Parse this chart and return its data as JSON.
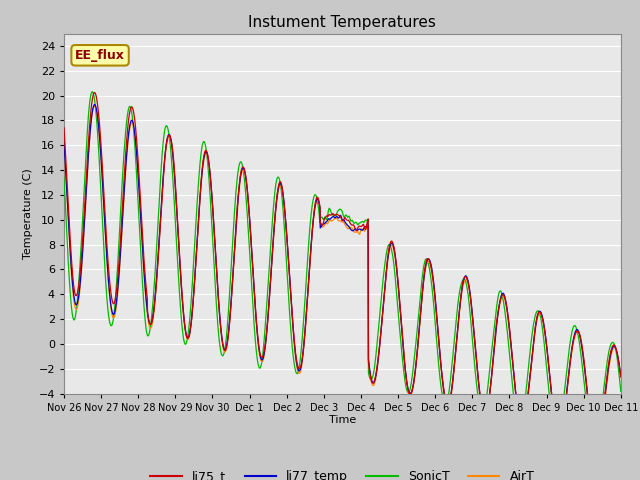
{
  "title": "Instument Temperatures",
  "ylabel": "Temperature (C)",
  "xlabel": "Time",
  "ylim": [
    -4,
    25
  ],
  "yticks": [
    -4,
    -2,
    0,
    2,
    4,
    6,
    8,
    10,
    12,
    14,
    16,
    18,
    20,
    22,
    24
  ],
  "xtick_labels": [
    "Nov 26",
    "Nov 27",
    "Nov 28",
    "Nov 29",
    "Nov 30",
    "Dec 1",
    "Dec 2",
    "Dec 3",
    "Dec 4",
    "Dec 5",
    "Dec 6",
    "Dec 7",
    "Dec 8",
    "Dec 9",
    "Dec 10",
    "Dec 11"
  ],
  "line_colors": {
    "li75_t": "#cc0000",
    "li77_temp": "#0000cc",
    "SonicT": "#00bb00",
    "AirT": "#ff8800"
  },
  "annotation_text": "EE_flux",
  "annotation_bg": "#ffffaa",
  "annotation_border": "#aa8800",
  "fig_bg": "#c8c8c8",
  "plot_bg": "#e8e8e8",
  "grid_color": "#ffffff",
  "n_points": 2000,
  "n_days": 15
}
